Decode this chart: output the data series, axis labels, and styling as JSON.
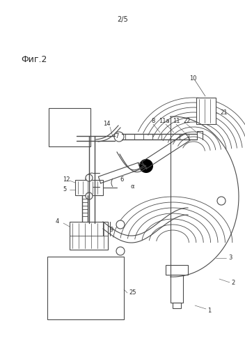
{
  "title": "2/5",
  "fig_label": "Фиг.2",
  "bg_color": "#ffffff",
  "line_color": "#4a4a4a",
  "dark_color": "#2a2a2a",
  "fig_width": 3.52,
  "fig_height": 4.99,
  "dpi": 100
}
